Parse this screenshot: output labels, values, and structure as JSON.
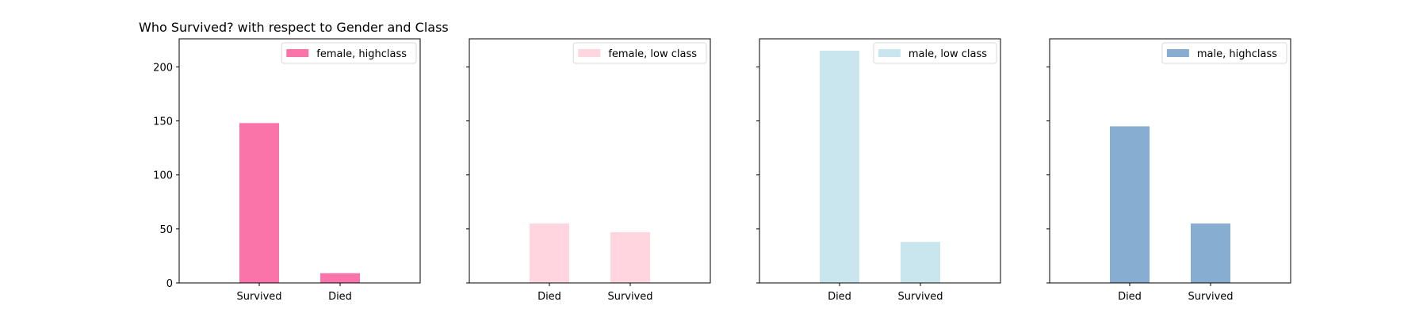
{
  "chart_data": {
    "title": "Who Survived? with respect to Gender and Class",
    "type": "bar",
    "ylim": [
      0,
      226
    ],
    "yticks": [
      0,
      50,
      100,
      150,
      200
    ],
    "grid": false,
    "legend_position": "top-right",
    "panels": [
      {
        "legend": "female, highclass",
        "color": "#FB74A9",
        "categories": [
          "Survived",
          "Died"
        ],
        "values": [
          148,
          9
        ]
      },
      {
        "legend": "female, low class",
        "color": "#FFD6DF",
        "categories": [
          "Died",
          "Survived"
        ],
        "values": [
          55,
          47
        ]
      },
      {
        "legend": "male, low class",
        "color": "#C9E5EE",
        "categories": [
          "Died",
          "Survived"
        ],
        "values": [
          215,
          38
        ]
      },
      {
        "legend": "male, highclass",
        "color": "#87ADD0",
        "categories": [
          "Died",
          "Survived"
        ],
        "values": [
          145,
          55
        ]
      }
    ]
  }
}
